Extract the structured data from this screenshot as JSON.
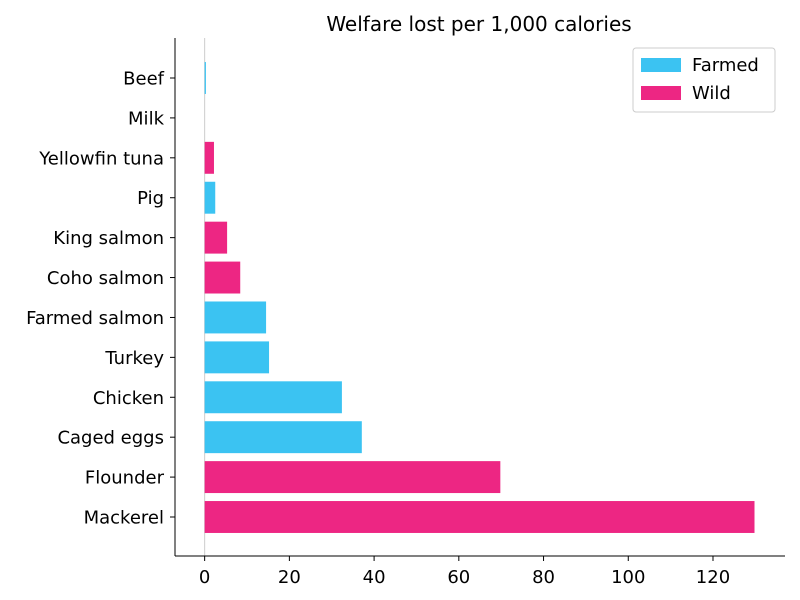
{
  "chart_data": {
    "type": "bar",
    "orientation": "horizontal",
    "title": "Welfare lost per 1,000 calories",
    "xlabel": "",
    "ylabel": "",
    "xlim": [
      -7,
      137
    ],
    "xticks": [
      0,
      20,
      40,
      60,
      80,
      100,
      120
    ],
    "categories": [
      "Beef",
      "Milk",
      "Yellowfin tuna",
      "Pig",
      "King salmon",
      "Coho salmon",
      "Farmed salmon",
      "Turkey",
      "Chicken",
      "Caged eggs",
      "Flounder",
      "Mackerel"
    ],
    "values": [
      0.3,
      0,
      2.2,
      2.5,
      5.3,
      8.4,
      14.5,
      15.2,
      32.4,
      37.1,
      69.8,
      129.8
    ],
    "groups": [
      "Farmed",
      "Farmed",
      "Wild",
      "Farmed",
      "Wild",
      "Wild",
      "Farmed",
      "Farmed",
      "Farmed",
      "Farmed",
      "Wild",
      "Wild"
    ],
    "legend": {
      "position": "top-right",
      "entries": [
        {
          "name": "Farmed",
          "color": "#3bc3f2"
        },
        {
          "name": "Wild",
          "color": "#ed2683"
        }
      ]
    },
    "grid": false,
    "zero_line": true
  }
}
